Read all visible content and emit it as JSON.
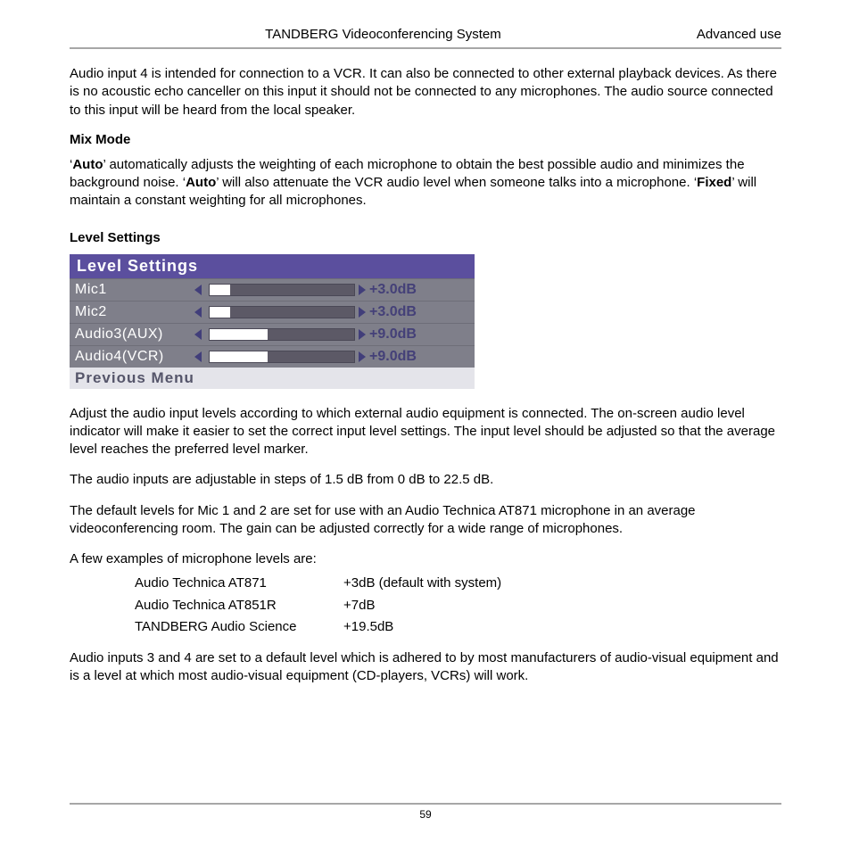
{
  "colors": {
    "rule": "#a7a7a7",
    "panel_title_bg": "#5b4f9e",
    "panel_row_bg": "#7f7f8a",
    "panel_prev_bg": "#e4e4ea",
    "triangle": "#413e7a",
    "footer_rule": "#a7a7a7"
  },
  "header": {
    "center": "TANDBERG Videoconferencing System",
    "right": "Advanced use"
  },
  "intro_para": "Audio input 4 is intended for connection to a VCR. It can also be connected to other external playback devices. As there is no acoustic echo canceller on this input it should not be connected to any microphones. The audio source connected to this input will be heard from the local speaker.",
  "mix_mode": {
    "heading": "Mix Mode",
    "line1_pre": "‘",
    "auto": "Auto",
    "line1_mid": "’ automatically adjusts the weighting of each microphone to obtain the best possible audio and minimizes the background noise. ‘",
    "line1_mid2": "’ will also attenuate the VCR audio level when someone talks into a microphone. ‘",
    "fixed": "Fixed",
    "line1_end": "’ will maintain a constant weighting for all microphones."
  },
  "level_settings": {
    "heading": "Level Settings",
    "panel_title": "Level Settings",
    "rows": [
      {
        "label": "Mic1",
        "value": "+3.0dB",
        "fill_pct": 14
      },
      {
        "label": "Mic2",
        "value": "+3.0dB",
        "fill_pct": 14
      },
      {
        "label": "Audio3(AUX)",
        "value": "+9.0dB",
        "fill_pct": 40
      },
      {
        "label": "Audio4(VCR)",
        "value": "+9.0dB",
        "fill_pct": 40
      }
    ],
    "prev": "Previous Menu"
  },
  "after_panel_p1": "Adjust the audio input levels according to which external audio equipment is connected. The on-screen audio level indicator will make it easier to set the correct input level settings. The input level should be adjusted so that the average level reaches the preferred level marker.",
  "after_panel_p2": "The audio inputs are adjustable in steps of 1.5 dB from 0 dB to 22.5 dB.",
  "after_panel_p3": "The default levels for Mic 1 and 2 are set for use with an Audio Technica AT871 microphone in an average videoconferencing room. The gain can be adjusted correctly for a wide range of microphones.",
  "examples_intro": "A few examples of microphone levels are:",
  "examples": [
    {
      "name": "Audio Technica AT871",
      "level": "+3dB (default with system)"
    },
    {
      "name": "Audio Technica AT851R",
      "level": "+7dB"
    },
    {
      "name": "TANDBERG Audio Science",
      "level": "+19.5dB"
    }
  ],
  "final_para": "Audio inputs 3 and 4 are set to a default level which is adhered to by most manufacturers of  audio-visual equipment and is a level at which most audio-visual equipment (CD-players, VCRs) will work.",
  "page_number": "59"
}
